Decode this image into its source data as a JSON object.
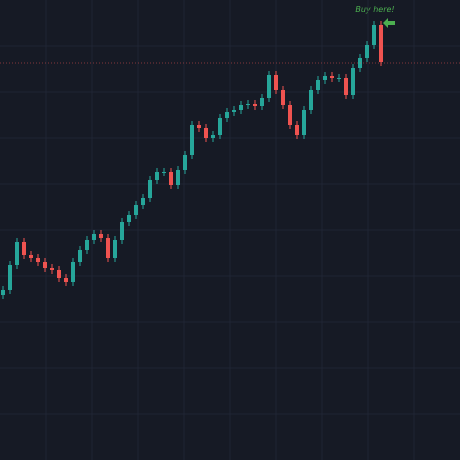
{
  "chart_data": {
    "type": "candlestick",
    "annotation": "Buy here!",
    "ylim": [
      0,
      460
    ],
    "up_color": "#26a69a",
    "down_color": "#ef5350",
    "annotation_color": "#4caf50",
    "price_line": 397,
    "open": [
      165,
      170,
      195,
      218,
      205,
      202,
      198,
      192,
      190,
      182,
      178,
      198,
      210,
      220,
      226,
      222,
      202,
      220,
      238,
      245,
      255,
      262,
      280,
      288,
      288,
      275,
      290,
      305,
      335,
      332,
      322,
      325,
      342,
      348,
      350,
      355,
      356,
      354,
      362,
      385,
      370,
      355,
      335,
      325,
      350,
      370,
      380,
      384,
      382,
      382,
      365,
      392,
      402,
      415,
      435
    ],
    "high": [
      174,
      199,
      222,
      222,
      209,
      206,
      202,
      196,
      194,
      186,
      202,
      214,
      224,
      230,
      230,
      226,
      224,
      242,
      249,
      259,
      266,
      284,
      292,
      292,
      292,
      294,
      309,
      339,
      339,
      336,
      329,
      346,
      352,
      354,
      359,
      360,
      360,
      366,
      389,
      389,
      374,
      359,
      339,
      354,
      374,
      384,
      388,
      388,
      386,
      386,
      396,
      406,
      419,
      439,
      439
    ],
    "low": [
      161,
      166,
      191,
      201,
      198,
      194,
      188,
      186,
      178,
      174,
      174,
      194,
      206,
      216,
      218,
      198,
      198,
      216,
      234,
      241,
      251,
      258,
      276,
      284,
      271,
      271,
      286,
      301,
      328,
      318,
      318,
      321,
      338,
      344,
      346,
      351,
      350,
      350,
      358,
      366,
      351,
      331,
      321,
      321,
      346,
      366,
      376,
      378,
      378,
      361,
      361,
      388,
      398,
      411,
      394
    ],
    "close": [
      170,
      195,
      218,
      205,
      202,
      198,
      192,
      190,
      182,
      178,
      198,
      210,
      220,
      226,
      222,
      202,
      220,
      238,
      245,
      255,
      262,
      280,
      288,
      288,
      275,
      290,
      305,
      335,
      332,
      322,
      325,
      342,
      348,
      350,
      355,
      356,
      354,
      362,
      385,
      370,
      355,
      335,
      325,
      350,
      370,
      380,
      384,
      382,
      382,
      365,
      392,
      402,
      415,
      435,
      398
    ]
  }
}
